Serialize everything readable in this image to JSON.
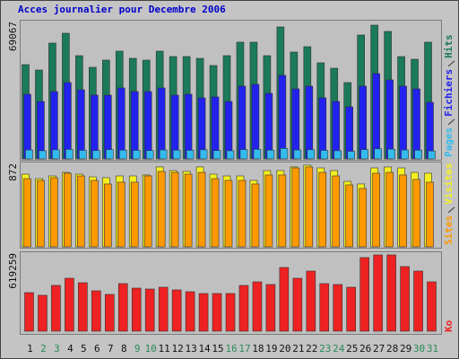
{
  "chart_data": [
    {
      "type": "bar",
      "title": "Acces journalier pour Decembre 2006",
      "ylim": [
        0,
        69067
      ],
      "yticks": [
        69067
      ],
      "series": [
        {
          "name": "Pages",
          "color": "#33bbee",
          "values": [
            4600,
            4200,
            4700,
            4900,
            4400,
            4300,
            4800,
            4500,
            4400,
            4300,
            4600,
            4500,
            4400,
            4700,
            4300,
            4200,
            4800,
            4900,
            4500,
            5400,
            4600,
            4700,
            4400,
            4200,
            3900,
            4800,
            5200,
            5000,
            4600,
            4500,
            4100
          ]
        },
        {
          "name": "Fichiers",
          "color": "#2222ee",
          "values": [
            33375,
            29667,
            34766,
            39401,
            35693,
            32911,
            32911,
            36620,
            34766,
            34766,
            36620,
            32911,
            33375,
            31521,
            31984,
            29667,
            37547,
            38474,
            33838,
            43109,
            36156,
            37547,
            31521,
            29667,
            26885,
            37547,
            44036,
            40792,
            37547,
            36156,
            29203
          ]
        },
        {
          "name": "Hits",
          "color": "#1a7a5a",
          "values": [
            48672,
            45890,
            59797,
            64896,
            53307,
            47281,
            50989,
            55625,
            51916,
            50989,
            55625,
            52844,
            52844,
            51916,
            48208,
            53307,
            60260,
            60260,
            53307,
            68140,
            55161,
            57943,
            49599,
            46818,
            39401,
            63969,
            69067,
            65823,
            52844,
            51453,
            60260
          ]
        }
      ]
    },
    {
      "type": "bar",
      "ylim": [
        0,
        872
      ],
      "yticks": [
        872
      ],
      "series": [
        {
          "name": "Sites",
          "color": "#ff9900",
          "values": [
            728,
            709,
            738,
            786,
            757,
            709,
            671,
            690,
            690,
            757,
            805,
            795,
            776,
            795,
            728,
            709,
            709,
            671,
            767,
            767,
            843,
            853,
            795,
            757,
            661,
            623,
            786,
            795,
            767,
            719,
            690
          ]
        },
        {
          "name": "Visites",
          "color": "#f4f020",
          "values": [
            776,
            728,
            757,
            795,
            776,
            747,
            738,
            757,
            757,
            767,
            853,
            814,
            805,
            853,
            776,
            757,
            757,
            709,
            814,
            814,
            853,
            872,
            843,
            814,
            699,
            671,
            843,
            853,
            843,
            795,
            786
          ]
        }
      ]
    },
    {
      "type": "bar",
      "ylim": [
        0,
        619259
      ],
      "yticks": [
        619259
      ],
      "categories": [
        "1",
        "2",
        "3",
        "4",
        "5",
        "6",
        "7",
        "8",
        "9",
        "10",
        "11",
        "12",
        "13",
        "14",
        "15",
        "16",
        "17",
        "18",
        "19",
        "20",
        "21",
        "22",
        "23",
        "24",
        "25",
        "26",
        "27",
        "28",
        "29",
        "30",
        "31"
      ],
      "category_colors": [
        "#111111",
        "#2a8a5a",
        "#2a8a5a",
        "#111111",
        "#111111",
        "#111111",
        "#111111",
        "#111111",
        "#2a8a5a",
        "#2a8a5a",
        "#111111",
        "#111111",
        "#111111",
        "#111111",
        "#111111",
        "#2a8a5a",
        "#2a8a5a",
        "#111111",
        "#111111",
        "#111111",
        "#111111",
        "#111111",
        "#2a8a5a",
        "#2a8a5a",
        "#111111",
        "#111111",
        "#111111",
        "#111111",
        "#111111",
        "#2a8a5a",
        "#2a8a5a"
      ],
      "series": [
        {
          "name": "Ko",
          "color": "#ee2222",
          "values": [
            313272,
            291416,
            371555,
            429839,
            393412,
            327843,
            298701,
            386127,
            349699,
            342414,
            356985,
            335128,
            320558,
            305987,
            305987,
            305987,
            371555,
            400697,
            378841,
            517263,
            429839,
            488122,
            386127,
            378841,
            356985,
            597403,
            619259,
            619259,
            524549,
            488122,
            400697
          ]
        }
      ]
    }
  ]
}
